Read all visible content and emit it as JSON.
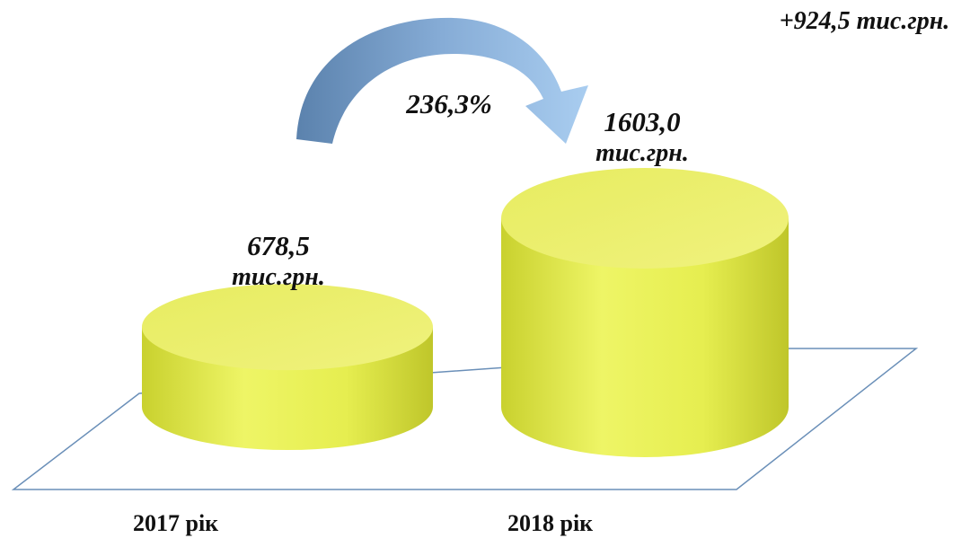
{
  "title_fragment": "",
  "growth_pct": "236,3%",
  "delta_label": "+924,5 тис.грн.",
  "colors": {
    "cylinder_fill": "#e8ee55",
    "cylinder_top": "#eef072",
    "arrow_dark": "#5b82ad",
    "arrow_light": "#a9cdf0",
    "floor_line": "#6a8fb8"
  },
  "chart_data": {
    "type": "bar",
    "style": "3d-cylinder",
    "title": "",
    "categories": [
      "2017 рік",
      "2018 рік"
    ],
    "values": [
      678.5,
      1603.0
    ],
    "unit": "тис.грн.",
    "data_labels": [
      {
        "value": "678,5",
        "unit": "тис.грн."
      },
      {
        "value": "1603,0",
        "unit": "тис.грн."
      }
    ],
    "annotations": [
      "236,3%",
      "+924,5 тис.грн."
    ],
    "grid": false,
    "legend": "none"
  }
}
